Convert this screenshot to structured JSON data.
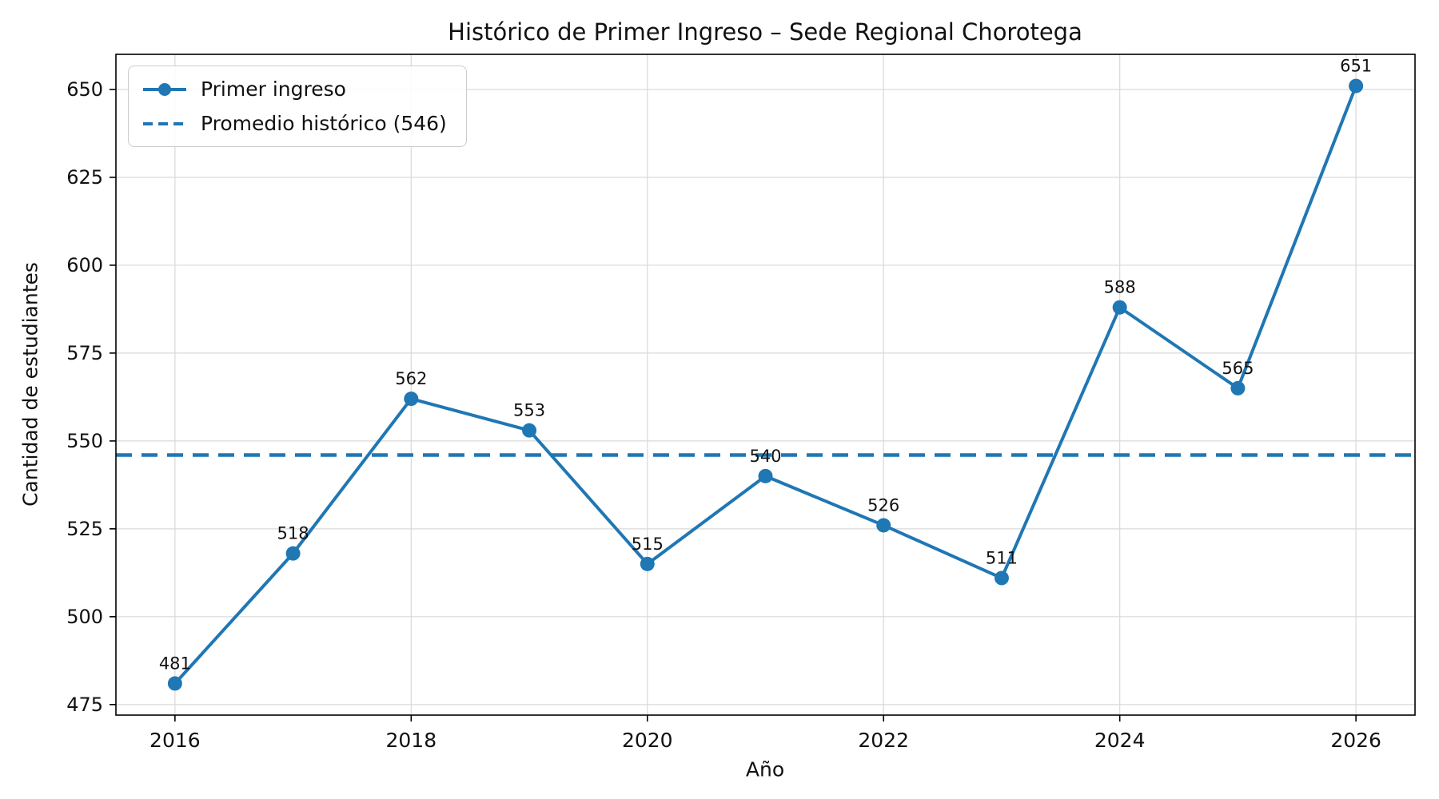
{
  "chart_data": {
    "type": "line",
    "title": "Histórico de Primer Ingreso – Sede Regional Chorotega",
    "xlabel": "Año",
    "ylabel": "Cantidad de estudiantes",
    "x": [
      2016,
      2017,
      2018,
      2019,
      2020,
      2021,
      2022,
      2023,
      2024,
      2025,
      2026
    ],
    "series": [
      {
        "name": "Primer ingreso",
        "values": [
          481,
          518,
          562,
          553,
          515,
          540,
          526,
          511,
          588,
          565,
          651
        ],
        "color": "#1f77b4",
        "marker": "circle"
      }
    ],
    "average_line": {
      "label": "Promedio histórico (546)",
      "value": 546,
      "color": "#1f77b4",
      "style": "dashed"
    },
    "annotations": [
      "481",
      "518",
      "562",
      "553",
      "515",
      "540",
      "526",
      "511",
      "588",
      "565",
      "651"
    ],
    "xticks": [
      2016,
      2018,
      2020,
      2022,
      2024,
      2026
    ],
    "yticks": [
      475,
      500,
      525,
      550,
      575,
      600,
      625,
      650
    ],
    "xlim": [
      2015.5,
      2026.5
    ],
    "ylim": [
      472,
      660
    ],
    "grid": true,
    "legend_position": "upper left"
  },
  "colors": {
    "line": "#1f77b4",
    "grid": "#d9d9d9",
    "spine": "#000000",
    "text": "#111111",
    "background": "#ffffff"
  }
}
